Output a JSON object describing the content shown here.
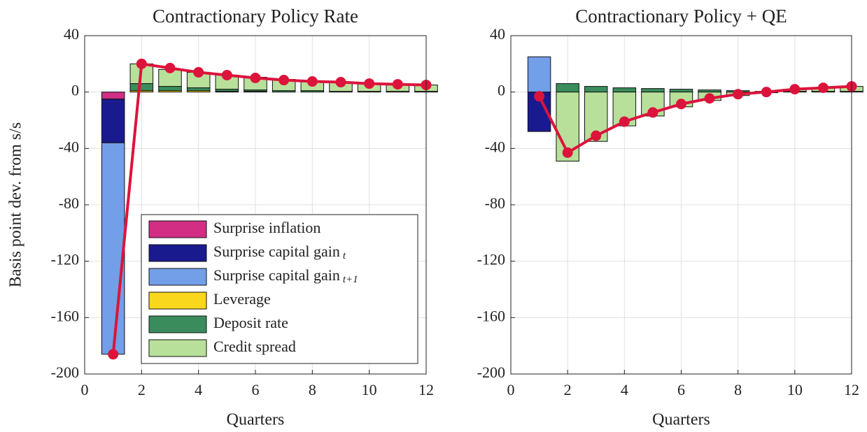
{
  "chart_data": [
    {
      "type": "bar",
      "stacked": true,
      "title": "Contractionary Policy Rate",
      "xlabel": "Quarters",
      "ylabel": "Basis point dev. from s/s",
      "x": [
        1,
        2,
        3,
        4,
        5,
        6,
        7,
        8,
        9,
        10,
        11,
        12
      ],
      "xlim": [
        0,
        12
      ],
      "xticks": [
        0,
        2,
        4,
        6,
        8,
        10,
        12
      ],
      "ylim": [
        -200,
        40
      ],
      "yticks": [
        -200,
        -160,
        -120,
        -80,
        -40,
        0,
        40
      ],
      "grid": true,
      "legend": "lower right",
      "series": [
        {
          "name": "Surprise inflation",
          "color": "#d12e84",
          "values": [
            -5,
            0,
            0,
            0,
            0,
            0,
            0,
            0,
            0,
            0,
            0,
            0
          ]
        },
        {
          "name": "Surprise capital gain",
          "subscript": "t",
          "color": "#1a1a8f",
          "values": [
            -31,
            0,
            0,
            0,
            0,
            0,
            0,
            0,
            0,
            0,
            0,
            0
          ]
        },
        {
          "name": "Surprise capital gain",
          "subscript": "t+1",
          "color": "#739ee8",
          "values": [
            -150,
            0,
            0,
            0,
            0,
            0,
            0,
            0,
            0,
            0,
            0,
            0
          ]
        },
        {
          "name": "Leverage",
          "color": "#f9d71c",
          "values": [
            0,
            1,
            1,
            1,
            0.5,
            0.5,
            0,
            0,
            0,
            0,
            0,
            0
          ]
        },
        {
          "name": "Deposit rate",
          "color": "#3a8c5c",
          "values": [
            0,
            5,
            3,
            2,
            1.5,
            1,
            1,
            1,
            0.5,
            0.5,
            0.5,
            0.5
          ]
        },
        {
          "name": "Credit spread",
          "color": "#b8e09a",
          "values": [
            0,
            14,
            12,
            11,
            10,
            9,
            8,
            7,
            6.5,
            5.5,
            5,
            4.5
          ]
        }
      ],
      "total": {
        "color": "#dc143c",
        "values": [
          -186,
          20,
          17,
          14,
          12,
          10,
          8.5,
          7.5,
          7,
          6,
          5.5,
          5
        ]
      }
    },
    {
      "type": "bar",
      "stacked": true,
      "title": "Contractionary Policy + QE",
      "xlabel": "Quarters",
      "x": [
        1,
        2,
        3,
        4,
        5,
        6,
        7,
        8,
        9,
        10,
        11,
        12
      ],
      "xlim": [
        0,
        12
      ],
      "xticks": [
        0,
        2,
        4,
        6,
        8,
        10,
        12
      ],
      "ylim": [
        -200,
        40
      ],
      "yticks": [
        -200,
        -160,
        -120,
        -80,
        -40,
        0,
        40
      ],
      "grid": true,
      "series": [
        {
          "color": "#d12e84",
          "values": [
            0,
            0,
            0,
            0,
            0,
            0,
            0,
            0,
            0,
            0,
            0,
            0
          ]
        },
        {
          "color": "#1a1a8f",
          "values": [
            -28,
            0,
            0,
            0,
            0,
            0,
            0,
            0,
            0,
            0,
            0,
            0
          ]
        },
        {
          "color": "#739ee8",
          "values": [
            25,
            0,
            0,
            0,
            0,
            0,
            0,
            0,
            0,
            0,
            0,
            0
          ]
        },
        {
          "color": "#f9d71c",
          "values": [
            0,
            0,
            0,
            0,
            0,
            0,
            0,
            0,
            0,
            0,
            0,
            0
          ]
        },
        {
          "color": "#3a8c5c",
          "values": [
            0,
            6,
            4,
            3,
            2.5,
            2,
            1.5,
            1,
            0.5,
            0.5,
            0.5,
            0.5
          ]
        },
        {
          "color": "#b8e09a",
          "values": [
            0,
            -49,
            -35,
            -24,
            -17,
            -10.5,
            -6,
            -2.5,
            -0.5,
            1.5,
            2.5,
            3.5
          ]
        }
      ],
      "total": {
        "color": "#dc143c",
        "values": [
          -3,
          -43,
          -31,
          -21,
          -14.5,
          -8.5,
          -4.5,
          -1.5,
          0,
          2,
          3,
          4
        ]
      }
    }
  ]
}
